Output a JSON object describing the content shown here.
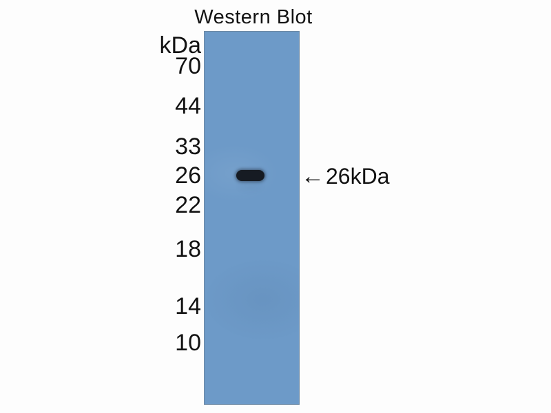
{
  "figure": {
    "title": "Western Blot",
    "ladder": {
      "unit": "kDa",
      "markers": [
        "70",
        "44",
        "33",
        "26",
        "22",
        "18",
        "14",
        "10"
      ]
    },
    "lane": {
      "band": {
        "approx_size_kda": 26
      }
    },
    "annotation": {
      "arrow_icon": "←",
      "label": "26kDa"
    }
  },
  "colors": {
    "background": "#fdfdfd",
    "lane-blue": "#6d9ac8",
    "lane-border": "#6b87a2",
    "band-dark": "#161b23",
    "text": "#121212"
  }
}
